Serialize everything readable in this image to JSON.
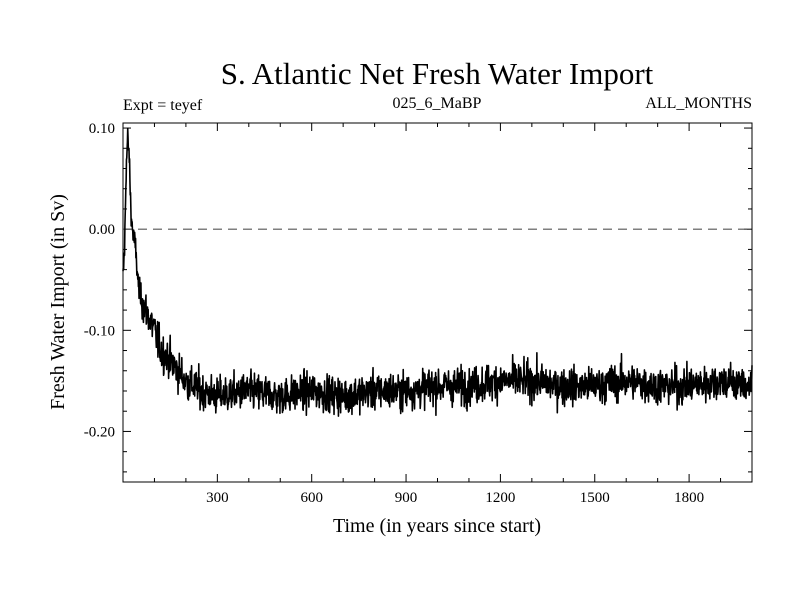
{
  "chart_data": {
    "type": "line",
    "title": "S. Atlantic Net Fresh Water Import",
    "subtitle_left": "Expt = teyef",
    "subtitle_center": "025_6_MaBP",
    "subtitle_right": "ALL_MONTHS",
    "xlabel": "Time (in years since start)",
    "ylabel": "Fresh Water Import (in Sv)",
    "xlim": [
      0,
      2000
    ],
    "ylim": [
      -0.25,
      0.105
    ],
    "x_ticks": [
      300,
      600,
      900,
      1200,
      1500,
      1800
    ],
    "x_tick_labels": [
      "300",
      "600",
      "900",
      "1200",
      "1500",
      "1800"
    ],
    "y_ticks": [
      0.1,
      0.0,
      -0.1,
      -0.2
    ],
    "y_tick_labels": [
      "0.10",
      "0.00",
      "-0.10",
      "-0.20"
    ],
    "reference_line": 0.0,
    "series": [
      {
        "name": "Net fresh water import",
        "description": "annual time series, noisy; spikes near +0.09 at start, drops to ~-0.16 by year 200, then fluctuates around -0.16 to -0.15 with noise amplitude ~0.04",
        "x": [
          0,
          5,
          10,
          15,
          20,
          25,
          30,
          40,
          50,
          60,
          70,
          80,
          100,
          120,
          150,
          200,
          250,
          300,
          400,
          500,
          600,
          700,
          800,
          900,
          1000,
          1100,
          1200,
          1300,
          1400,
          1500,
          1600,
          1700,
          1800,
          1900,
          2000
        ],
        "values": [
          -0.05,
          -0.02,
          0.06,
          0.09,
          0.07,
          0.02,
          0.0,
          -0.02,
          -0.06,
          -0.07,
          -0.08,
          -0.085,
          -0.1,
          -0.12,
          -0.13,
          -0.15,
          -0.16,
          -0.165,
          -0.16,
          -0.165,
          -0.16,
          -0.165,
          -0.16,
          -0.16,
          -0.155,
          -0.155,
          -0.15,
          -0.15,
          -0.155,
          -0.155,
          -0.15,
          -0.155,
          -0.155,
          -0.15,
          -0.155
        ]
      }
    ],
    "noise_amplitude": 0.035,
    "grid": false
  }
}
